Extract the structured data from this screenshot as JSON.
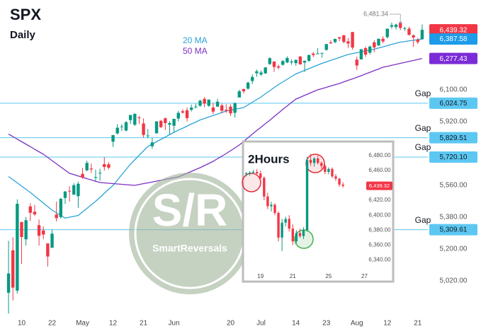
{
  "watermark": {
    "mark": "S/R",
    "name": "SmartReversals"
  },
  "chart_data": [
    {
      "type": "candlestick",
      "title": "SPX",
      "subtitle": "Daily",
      "categories": [
        null,
        null,
        null,
        "10",
        null,
        null,
        null,
        null,
        null,
        null,
        "22",
        null,
        null,
        null,
        null,
        null,
        null,
        "May",
        null,
        null,
        null,
        null,
        null,
        null,
        "12",
        null,
        null,
        null,
        null,
        null,
        null,
        "21",
        null,
        null,
        null,
        null,
        null,
        null,
        "Jun",
        null,
        null,
        null,
        null,
        null,
        null,
        null,
        null,
        null,
        null,
        null,
        null,
        "20",
        null,
        null,
        null,
        null,
        null,
        null,
        "Jul",
        null,
        null,
        null,
        null,
        null,
        null,
        null,
        "14",
        null,
        null,
        null,
        null,
        null,
        null,
        "23",
        null,
        null,
        null,
        null,
        null,
        null,
        "Aug",
        null,
        null,
        null,
        null,
        null,
        null,
        "12",
        null,
        null,
        null,
        null,
        null,
        null,
        "21",
        null
      ],
      "open": [
        4953,
        5193,
        4965,
        5353,
        5255,
        5441,
        5411,
        5335,
        5305,
        5232,
        5207,
        5395,
        5381,
        5489,
        5529,
        5508,
        5499,
        5625,
        5645,
        5655,
        5606,
        5631,
        5680,
        5679,
        5807,
        5854,
        5891,
        5870,
        5929,
        5903,
        5944,
        5910,
        5841,
        5781,
        5854,
        5925,
        5939,
        5903,
        5897,
        5938,
        5979,
        5985,
        5987,
        6005,
        6010,
        6049,
        6010,
        6000,
        6005,
        6012,
        5987,
        6005,
        5970,
        6057,
        6104,
        6107,
        6150,
        6194,
        6187,
        6193,
        6246,
        6260,
        6233,
        6242,
        6255,
        6255,
        6251,
        6288,
        6254,
        6264,
        6305,
        6304,
        6307,
        6326,
        6368,
        6370,
        6397,
        6409,
        6374,
        6427,
        6271,
        6272,
        6336,
        6310,
        6369,
        6351,
        6389,
        6398,
        6457,
        6455,
        6479,
        6445,
        6446,
        6408,
        6384,
        6386
      ],
      "high": [
        5246,
        5267,
        5481,
        5353,
        5381,
        5459,
        5450,
        5367,
        5328,
        5232,
        5309,
        5469,
        5489,
        5528,
        5554,
        5572,
        5581,
        5659,
        5700,
        5683,
        5649,
        5654,
        5720,
        5691,
        5845,
        5906,
        5906,
        5924,
        5958,
        5968,
        5953,
        5939,
        5878,
        5829,
        5922,
        5930,
        5944,
        5923,
        5937,
        5981,
        5990,
        5999,
        6017,
        6022,
        6044,
        6059,
        6045,
        6026,
        6050,
        6023,
        6018,
        6018,
        6028,
        6101,
        6108,
        6146,
        6187,
        6215,
        6210,
        6228,
        6284,
        6262,
        6243,
        6269,
        6290,
        6272,
        6272,
        6292,
        6267,
        6299,
        6315,
        6336,
        6309,
        6359,
        6381,
        6390,
        6401,
        6409,
        6392,
        6427,
        6288,
        6330,
        6345,
        6350,
        6381,
        6389,
        6403,
        6446,
        6480,
        6474,
        6481.34,
        6457,
        6456,
        6414,
        6393,
        6470
      ],
      "low": [
        4835,
        4910,
        4948,
        5115,
        5220,
        5358,
        5387,
        5220,
        5255,
        5101,
        5207,
        5356,
        5372,
        5455,
        5468,
        5505,
        5433,
        5597,
        5640,
        5630,
        5586,
        5586,
        5644,
        5650,
        5777,
        5847,
        5868,
        5865,
        5907,
        5895,
        5908,
        5830,
        5826,
        5767,
        5854,
        5885,
        5873,
        5846,
        5862,
        5922,
        5966,
        5921,
        5978,
        5994,
        6005,
        6002,
        6004,
        5964,
        6005,
        5968,
        5970,
        5952,
        5943,
        6057,
        6080,
        6100,
        6132,
        6174,
        6178,
        6191,
        6241,
        6201,
        6215,
        6236,
        6251,
        6242,
        6236,
        6243,
        6201,
        6258,
        6285,
        6303,
        6282,
        6321,
        6360,
        6363,
        6375,
        6363,
        6338,
        6327,
        6212,
        6272,
        6286,
        6301,
        6313,
        6349,
        6364,
        6390,
        6445,
        6441,
        6437,
        6433,
        6407,
        6343,
        6360,
        6385
      ],
      "close": [
        5062,
        4982,
        5456,
        5268,
        5363,
        5405,
        5396,
        5275,
        5282,
        5158,
        5287,
        5375,
        5484,
        5525,
        5528,
        5561,
        5569,
        5604,
        5687,
        5650,
        5607,
        5631,
        5664,
        5660,
        5844,
        5886,
        5893,
        5917,
        5958,
        5964,
        5941,
        5845,
        5842,
        5803,
        5922,
        5889,
        5912,
        5912,
        5936,
        5970,
        5971,
        5940,
        6000,
        6006,
        6039,
        6022,
        6045,
        5977,
        6033,
        5982,
        5981,
        5967,
        6025,
        6092,
        6092,
        6141,
        6173,
        6205,
        6198,
        6227,
        6279,
        6230,
        6226,
        6263,
        6280,
        6260,
        6269,
        6244,
        6264,
        6297,
        6297,
        6306,
        6309,
        6359,
        6363,
        6388,
        6390,
        6371,
        6362,
        6339,
        6238,
        6330,
        6299,
        6345,
        6340,
        6389,
        6374,
        6446,
        6466,
        6469,
        6450,
        6449,
        6411,
        6396,
        6370,
        6439.32
      ],
      "up_color": "#089981",
      "down_color": "#f23645",
      "series": [
        {
          "name": "20 MA",
          "color": "#2aa3d8",
          "values": [
            5610,
            5592,
            5574,
            5556,
            5538,
            5520,
            5500,
            5480,
            5460,
            5440,
            5420,
            5405,
            5390,
            5375,
            5380,
            5385,
            5390,
            5410,
            5430,
            5450,
            5470,
            5492,
            5515,
            5538,
            5560,
            5590,
            5620,
            5650,
            5680,
            5705,
            5730,
            5755,
            5780,
            5793,
            5807,
            5820,
            5833,
            5847,
            5860,
            5872,
            5883,
            5895,
            5907,
            5918,
            5930,
            5938,
            5947,
            5955,
            5963,
            5972,
            5980,
            5985,
            5990,
            5995,
            6000,
            6015,
            6030,
            6045,
            6060,
            6078,
            6095,
            6113,
            6130,
            6145,
            6160,
            6175,
            6190,
            6200,
            6210,
            6220,
            6230,
            6240,
            6250,
            6258,
            6267,
            6275,
            6283,
            6292,
            6300,
            6305,
            6310,
            6315,
            6320,
            6325,
            6330,
            6337,
            6343,
            6350,
            6357,
            6363,
            6370,
            6373,
            6377,
            6380,
            6384,
            6387.58
          ]
        },
        {
          "name": "50 MA",
          "color": "#7b2fc4",
          "values": [
            5850,
            5836,
            5821,
            5807,
            5793,
            5779,
            5764,
            5750,
            5736,
            5718,
            5700,
            5682,
            5664,
            5646,
            5628,
            5621,
            5613,
            5606,
            5598,
            5591,
            5583,
            5576,
            5574,
            5572,
            5570,
            5568,
            5566,
            5564,
            5562,
            5560,
            5565,
            5570,
            5574,
            5579,
            5584,
            5589,
            5594,
            5598,
            5603,
            5608,
            5618,
            5629,
            5639,
            5650,
            5660,
            5672,
            5684,
            5696,
            5711,
            5725,
            5740,
            5756,
            5772,
            5788,
            5809,
            5829,
            5850,
            5870,
            5889,
            5909,
            5928,
            5949,
            5969,
            5990,
            6009,
            6029,
            6048,
            6058,
            6069,
            6079,
            6090,
            6100,
            6107,
            6114,
            6122,
            6129,
            6136,
            6145,
            6154,
            6162,
            6171,
            6180,
            6190,
            6199,
            6209,
            6218,
            6228,
            6233,
            6239,
            6244,
            6250,
            6255,
            6261,
            6266,
            6272,
            6277.43
          ]
        }
      ],
      "ylim": [
        4828,
        6608
      ],
      "yticks": [
        {
          "value": 5020,
          "label": "5,020.00"
        },
        {
          "value": 5200,
          "label": "5,200.00"
        },
        {
          "value": 5380,
          "label": "5,380.00"
        },
        {
          "value": 5560,
          "label": "5,560.00"
        },
        {
          "value": 5920,
          "label": "5,920.00"
        },
        {
          "value": 6100,
          "label": "6,100.00"
        }
      ],
      "price_tags": [
        {
          "value": 6439.32,
          "label": "6,439.32",
          "color": "#f23645"
        },
        {
          "value": 6387.58,
          "label": "6,387.58",
          "color": "#1e9be9"
        },
        {
          "value": 6277.43,
          "label": "6,277.43",
          "color": "#7b2cd6"
        }
      ],
      "gap_color": "#5cc8f2",
      "gaps": [
        {
          "value": 6024.75,
          "label": "6,024.75",
          "text": "Gap"
        },
        {
          "value": 5829.51,
          "label": "5,829.51",
          "text": "Gap"
        },
        {
          "value": 5720.1,
          "label": "5,720.10",
          "text": "Gap"
        },
        {
          "value": 5309.61,
          "label": "5,309.61",
          "text": "Gap"
        }
      ],
      "annotations": [
        {
          "value": 6481.34,
          "label": "6,481.34"
        }
      ]
    },
    {
      "type": "candlestick",
      "title": "2Hours",
      "categories": [
        null,
        null,
        null,
        null,
        "19",
        null,
        null,
        null,
        null,
        null,
        null,
        null,
        null,
        "21",
        null,
        null,
        null,
        null,
        null,
        null,
        null,
        null,
        null,
        "25",
        null,
        null,
        null,
        null,
        null,
        null,
        null,
        null,
        null,
        "27"
      ],
      "open": [
        6455,
        6456,
        6457,
        6458,
        6456,
        6450,
        6425,
        6412,
        6414,
        6403,
        6370,
        6390,
        6395,
        6382,
        6365,
        6376,
        6372,
        6380,
        6474,
        6470,
        6476,
        6470,
        6466,
        6458,
        6462,
        6452,
        6449,
        6441,
        null,
        null,
        null,
        null,
        null,
        null
      ],
      "high": [
        6458,
        6459,
        6461,
        6462,
        6460,
        6452,
        6430,
        6418,
        6416,
        6405,
        6395,
        6398,
        6400,
        6388,
        6380,
        6382,
        6384,
        6478,
        6482,
        6478,
        6480,
        6472,
        6468,
        6464,
        6464,
        6455,
        6450,
        6444,
        null,
        null,
        null,
        null,
        null,
        null
      ],
      "low": [
        6452,
        6453,
        6455,
        6455,
        6448,
        6420,
        6408,
        6405,
        6400,
        6365,
        6352,
        6385,
        6378,
        6360,
        6362,
        6370,
        6368,
        6378,
        6466,
        6465,
        6468,
        6462,
        6455,
        6455,
        6450,
        6446,
        6438,
        6437,
        null,
        null,
        null,
        null,
        null,
        null
      ],
      "close": [
        6456,
        6457,
        6458,
        6456,
        6450,
        6425,
        6412,
        6414,
        6403,
        6370,
        6390,
        6395,
        6382,
        6365,
        6376,
        6372,
        6380,
        6474,
        6470,
        6476,
        6470,
        6466,
        6458,
        6462,
        6452,
        6449,
        6441,
        6439.32,
        null,
        null,
        null,
        null,
        null,
        null
      ],
      "up_color": "#089981",
      "down_color": "#f23645",
      "ylim": [
        6330,
        6494
      ],
      "yticks": [
        {
          "value": 6340,
          "label": "6,340.00"
        },
        {
          "value": 6360,
          "label": "6,360.00"
        },
        {
          "value": 6380,
          "label": "6,380.00"
        },
        {
          "value": 6400,
          "label": "6,400.00"
        },
        {
          "value": 6420,
          "label": "6,420.00"
        },
        {
          "value": 6440,
          "label": "6,440.00"
        },
        {
          "value": 6460,
          "label": "6,460.00"
        },
        {
          "value": 6480,
          "label": "6,480.00"
        }
      ],
      "price_tags": [
        {
          "value": 6439.32,
          "label": "6,439.32",
          "color": "#f23645"
        }
      ]
    }
  ]
}
